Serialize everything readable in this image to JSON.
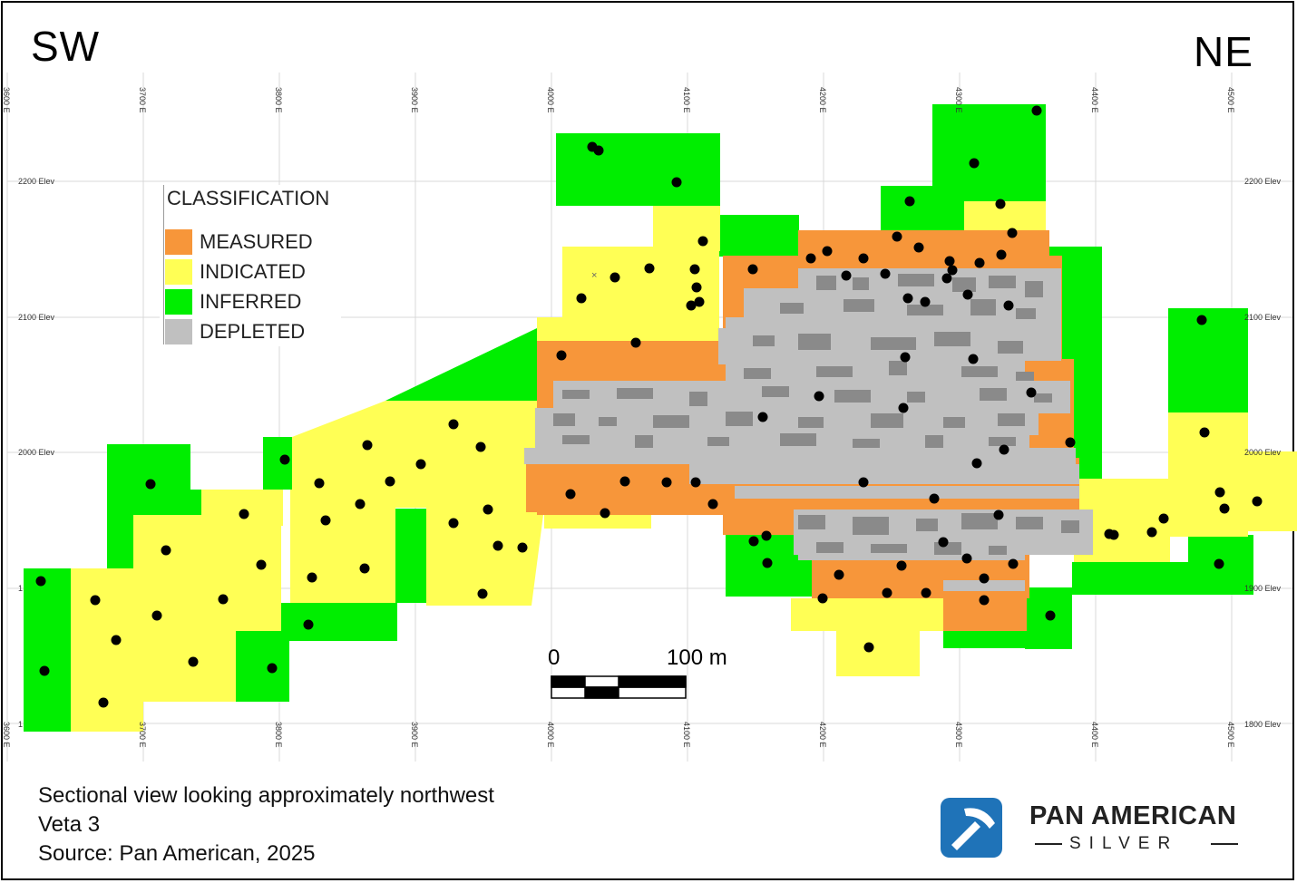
{
  "orientation": {
    "left": "SW",
    "right": "NE"
  },
  "axis": {
    "easting_top": [
      "3600 E",
      "3700 E",
      "3800 E",
      "3900 E",
      "4000 E",
      "4100 E",
      "4200 E",
      "4300 E",
      "4400 E",
      "4500 E"
    ],
    "easting_bottom": [
      "3600 E",
      "3700 E",
      "3800 E",
      "3900 E",
      "4000 E",
      "4100 E",
      "4200 E",
      "4300 E",
      "4400 E",
      "4500 E"
    ],
    "elev_left": [
      "2200 Elev",
      "2100 Elev",
      "2000 Elev",
      "1"
    ],
    "elev_right": [
      "2200 Elev",
      "2100 Elev",
      "2000 Elev",
      "1900 Elev",
      "1800 Elev"
    ],
    "elev_left_bottom": "1"
  },
  "legend": {
    "title": "CLASSIFICATION",
    "items": [
      {
        "label": "MEASURED",
        "color": "#f7963a"
      },
      {
        "label": "INDICATED",
        "color": "#ffff55"
      },
      {
        "label": "INFERRED",
        "color": "#00ee00"
      },
      {
        "label": "DEPLETED",
        "color": "#c0c0c0"
      }
    ]
  },
  "scale_bar": {
    "start": "0",
    "end": "100 m"
  },
  "captions": [
    "Sectional view looking approximately northwest",
    "Veta 3",
    "Source: Pan American, 2025"
  ],
  "logo": {
    "name": "PAN AMERICAN",
    "sub": "SILVER",
    "color": "#1f73b8",
    "icon": "pickaxe-icon"
  },
  "colors": {
    "measured": "#f7963a",
    "indicated": "#ffff55",
    "inferred": "#00ee00",
    "depleted": "#c0c0c0",
    "depleted_dark": "#8a8a8a",
    "drillhole": "#000000"
  }
}
